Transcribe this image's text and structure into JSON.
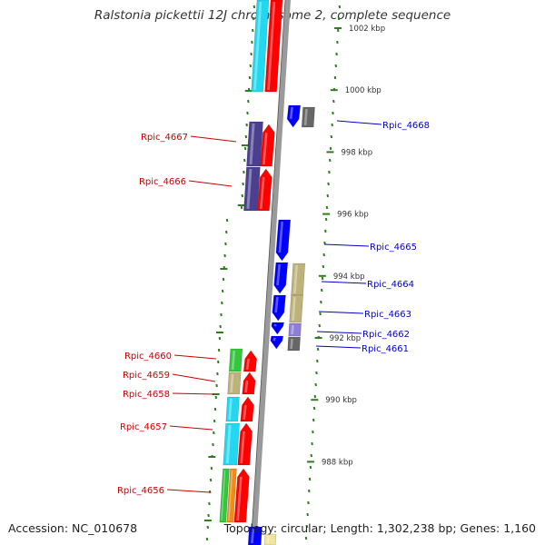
{
  "title": "Ralstonia pickettii 12J chromosome 2, complete sequence",
  "footer": {
    "accession": "Accession: NC_010678",
    "summary": "Topology: circular; Length: 1,302,238 bp; Genes: 1,160"
  },
  "scale": {
    "ticks": [
      {
        "label": "1002 kbp",
        "kbp": 1002
      },
      {
        "label": "1000 kbp",
        "kbp": 1000
      },
      {
        "label": "998 kbp",
        "kbp": 998
      },
      {
        "label": "996 kbp",
        "kbp": 996
      },
      {
        "label": "994 kbp",
        "kbp": 994
      },
      {
        "label": "992 kbp",
        "kbp": 992
      },
      {
        "label": "990 kbp",
        "kbp": 990
      },
      {
        "label": "988 kbp",
        "kbp": 988
      }
    ]
  },
  "gene_labels": {
    "left": [
      "Rpic_4667",
      "Rpic_4666",
      "Rpic_4660",
      "Rpic_4659",
      "Rpic_4658",
      "Rpic_4657",
      "Rpic_4656"
    ],
    "right": [
      "Rpic_4668",
      "Rpic_4665",
      "Rpic_4664",
      "Rpic_4663",
      "Rpic_4662",
      "Rpic_4661"
    ]
  },
  "colors": {
    "backbone": "#9a9a9a",
    "label_left": "#cc0000",
    "label_right": "#0000cc",
    "tick_marks": "#2e7d1e",
    "cds": "#ff0000",
    "cds_reverse": "#0000ff",
    "category_cyan": "#22d8f0",
    "category_purple": "#4b3f8f",
    "category_olive": "#bdb37a",
    "category_green": "#34c63c",
    "category_orange": "#f08c16",
    "category_gray": "#666666",
    "category_lavender": "#8e7fd6"
  }
}
